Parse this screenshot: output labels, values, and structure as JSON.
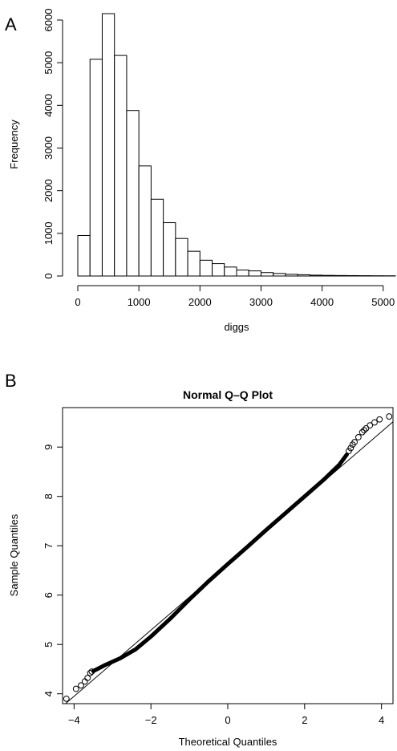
{
  "panels": {
    "a": {
      "letter": "A"
    },
    "b": {
      "letter": "B"
    }
  },
  "chart_data": [
    {
      "type": "bar",
      "subtype": "histogram",
      "title": "",
      "xlabel": "diggs",
      "ylabel": "Frequency",
      "bin_width": 200,
      "bin_edges_start": 0,
      "values": [
        950,
        5080,
        6150,
        5170,
        3880,
        2580,
        1800,
        1250,
        880,
        580,
        370,
        290,
        210,
        140,
        120,
        80,
        60,
        40,
        30,
        20,
        15,
        12,
        10,
        8,
        6,
        5
      ],
      "xlim": [
        0,
        5200
      ],
      "ylim": [
        0,
        6150
      ],
      "x_ticks": [
        "0",
        "1000",
        "2000",
        "3000",
        "4000",
        "5000"
      ],
      "y_ticks": [
        "0",
        "1000",
        "2000",
        "3000",
        "4000",
        "5000",
        "6000"
      ],
      "grid": false,
      "colors": {
        "fill": "#ffffff",
        "stroke": "#000000"
      }
    },
    {
      "type": "scatter",
      "subtype": "qq-plot",
      "title": "Normal Q–Q Plot",
      "xlabel": "Theoretical Quantiles",
      "ylabel": "Sample Quantiles",
      "xlim": [
        -4.3,
        4.3
      ],
      "ylim": [
        3.8,
        9.8
      ],
      "x_ticks": [
        "−4",
        "−2",
        "0",
        "2",
        "4"
      ],
      "y_ticks": [
        "4",
        "5",
        "6",
        "7",
        "8",
        "9"
      ],
      "reference_line": {
        "intercept": 6.63,
        "slope": 0.67
      },
      "dense_curve": [
        [
          -3.5,
          4.46
        ],
        [
          -3.2,
          4.58
        ],
        [
          -2.8,
          4.72
        ],
        [
          -2.4,
          4.9
        ],
        [
          -2.0,
          5.16
        ],
        [
          -1.5,
          5.52
        ],
        [
          -1.0,
          5.91
        ],
        [
          -0.5,
          6.28
        ],
        [
          0.0,
          6.63
        ],
        [
          0.5,
          6.97
        ],
        [
          1.0,
          7.32
        ],
        [
          1.5,
          7.66
        ],
        [
          2.0,
          8.0
        ],
        [
          2.5,
          8.34
        ],
        [
          2.9,
          8.64
        ],
        [
          3.1,
          8.85
        ]
      ],
      "outlier_points": [
        [
          -4.2,
          3.9
        ],
        [
          -3.95,
          4.1
        ],
        [
          -3.82,
          4.17
        ],
        [
          -3.72,
          4.25
        ],
        [
          -3.65,
          4.32
        ],
        [
          -3.58,
          4.42
        ],
        [
          -3.54,
          4.45
        ],
        [
          3.15,
          8.92
        ],
        [
          3.2,
          8.98
        ],
        [
          3.25,
          9.05
        ],
        [
          3.3,
          9.1
        ],
        [
          3.4,
          9.2
        ],
        [
          3.5,
          9.3
        ],
        [
          3.55,
          9.34
        ],
        [
          3.6,
          9.38
        ],
        [
          3.7,
          9.44
        ],
        [
          3.82,
          9.5
        ],
        [
          3.95,
          9.56
        ],
        [
          4.2,
          9.62
        ]
      ],
      "grid": false,
      "colors": {
        "points": "#000000",
        "line": "#000000"
      }
    }
  ]
}
